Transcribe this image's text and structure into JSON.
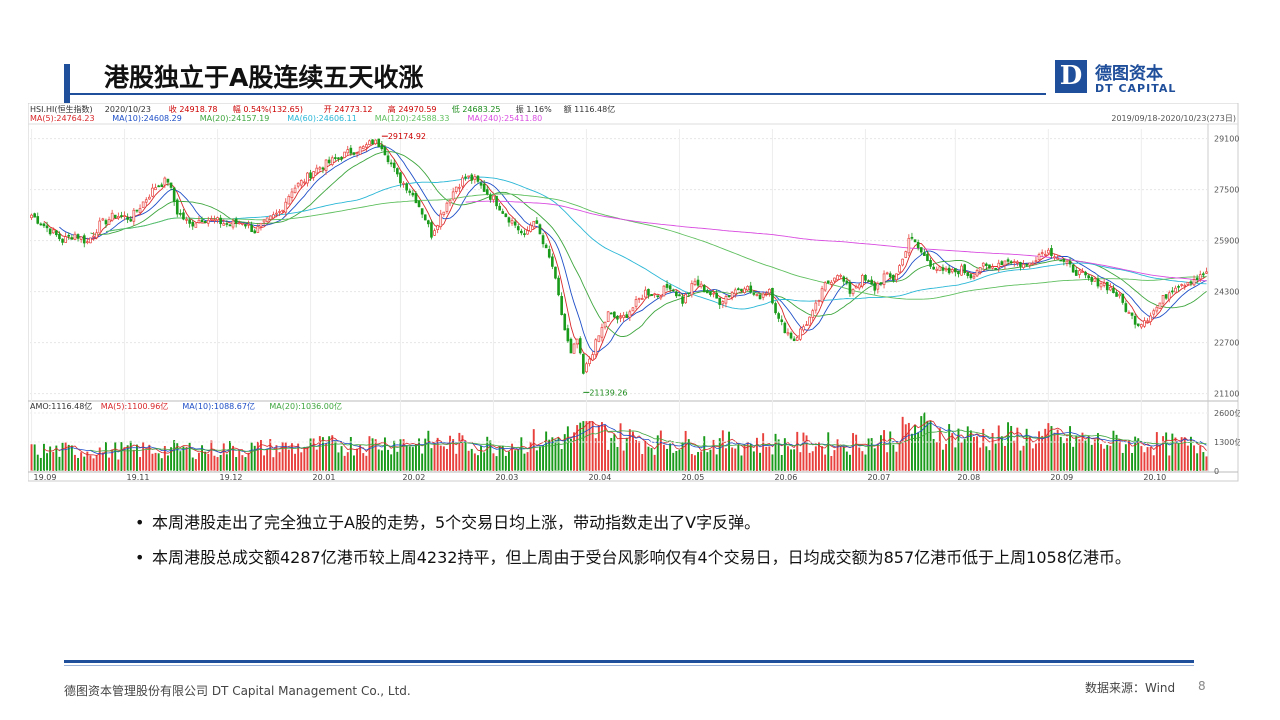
{
  "header": {
    "title": "港股独立于A股连续五天收涨",
    "logo_cn": "德图资本",
    "logo_en": "DT CAPITAL",
    "logo_mark": "D"
  },
  "chart_info": {
    "top_line": [
      "HSI.HI(恒生指数)",
      "2020/10/23",
      "收 24918.78",
      "幅 0.54%(132.65)",
      "开 24773.12",
      "高 24970.59",
      "低 24683.25",
      "振 1.16%",
      "额 1116.48亿"
    ],
    "ma_line": [
      "MA(5):24764.23",
      "MA(10):24608.29",
      "MA(20):24157.19",
      "MA(60):24606.11",
      "MA(120):24588.33",
      "MA(240):25411.80"
    ],
    "date_range": "2019/09/18-2020/10/23(273日)",
    "high_label": "29174.92",
    "low_label": "21139.26",
    "vol_line": [
      "AMO:1116.48亿",
      "MA(5):1100.96亿",
      "MA(10):1088.67亿",
      "MA(20):1036.00亿"
    ]
  },
  "colors": {
    "up": "#e8403c",
    "down": "#1a9a1a",
    "ma5": "#d8272a",
    "ma10": "#1f4fc7",
    "ma20": "#3fa63f",
    "ma60": "#2bb7d6",
    "ma120": "#5fbf5f",
    "ma240": "#d94de0",
    "brand": "#1f4e9a"
  },
  "chart_data": {
    "type": "candlestick",
    "title": "",
    "x_ticks": [
      "19.09",
      "19.11",
      "19.12",
      "20.01",
      "20.02",
      "20.03",
      "20.04",
      "20.05",
      "20.06",
      "20.07",
      "20.08",
      "20.09",
      "20.10"
    ],
    "y_ticks": [
      29100,
      27500,
      25900,
      24300,
      22700,
      21100
    ],
    "ylim": [
      20900,
      29400
    ],
    "vol_ticks": [
      "2600亿",
      "1300亿",
      "0"
    ],
    "vol_max": 2600,
    "close_path": [
      [
        0,
        26700
      ],
      [
        5,
        26300
      ],
      [
        10,
        25900
      ],
      [
        14,
        26100
      ],
      [
        18,
        25850
      ],
      [
        22,
        26400
      ],
      [
        27,
        26700
      ],
      [
        32,
        26600
      ],
      [
        36,
        27100
      ],
      [
        40,
        27600
      ],
      [
        44,
        27800
      ],
      [
        47,
        26800
      ],
      [
        51,
        26400
      ],
      [
        55,
        26600
      ],
      [
        60,
        26500
      ],
      [
        64,
        26400
      ],
      [
        68,
        26500
      ],
      [
        72,
        26200
      ],
      [
        76,
        26500
      ],
      [
        80,
        26800
      ],
      [
        84,
        27500
      ],
      [
        88,
        27800
      ],
      [
        91,
        28100
      ],
      [
        95,
        28300
      ],
      [
        99,
        28500
      ],
      [
        103,
        28700
      ],
      [
        107,
        28800
      ],
      [
        110,
        29000
      ],
      [
        113,
        28900
      ],
      [
        116,
        28300
      ],
      [
        118,
        27900
      ],
      [
        121,
        27600
      ],
      [
        124,
        27200
      ],
      [
        127,
        26600
      ],
      [
        129,
        26100
      ],
      [
        131,
        26500
      ],
      [
        134,
        27100
      ],
      [
        137,
        27600
      ],
      [
        140,
        27900
      ],
      [
        143,
        27800
      ],
      [
        146,
        27500
      ],
      [
        150,
        27100
      ],
      [
        153,
        26700
      ],
      [
        156,
        26400
      ],
      [
        159,
        26000
      ],
      [
        162,
        26600
      ],
      [
        165,
        25800
      ],
      [
        168,
        25100
      ],
      [
        170,
        24100
      ],
      [
        172,
        23100
      ],
      [
        174,
        22300
      ],
      [
        176,
        22800
      ],
      [
        178,
        21700
      ],
      [
        180,
        22200
      ],
      [
        183,
        22900
      ],
      [
        186,
        23600
      ],
      [
        190,
        23400
      ],
      [
        194,
        23800
      ],
      [
        198,
        24300
      ],
      [
        202,
        24200
      ],
      [
        206,
        24500
      ],
      [
        210,
        24000
      ],
      [
        214,
        24600
      ],
      [
        218,
        24300
      ],
      [
        222,
        24000
      ],
      [
        226,
        24300
      ],
      [
        230,
        24500
      ],
      [
        234,
        24100
      ],
      [
        238,
        24400
      ],
      [
        241,
        23400
      ],
      [
        244,
        23000
      ],
      [
        246,
        22800
      ],
      [
        249,
        23200
      ],
      [
        252,
        23600
      ],
      [
        256,
        24500
      ],
      [
        260,
        24900
      ],
      [
        264,
        24300
      ],
      [
        268,
        24700
      ],
      [
        272,
        24400
      ],
      [
        275,
        24800
      ],
      [
        278,
        24700
      ],
      [
        281,
        25300
      ],
      [
        283,
        26000
      ],
      [
        285,
        25800
      ],
      [
        288,
        25400
      ],
      [
        291,
        25100
      ],
      [
        294,
        24900
      ],
      [
        297,
        24900
      ],
      [
        300,
        25000
      ],
      [
        303,
        24800
      ],
      [
        306,
        25100
      ],
      [
        309,
        25000
      ],
      [
        312,
        25200
      ],
      [
        315,
        25300
      ],
      [
        318,
        25200
      ],
      [
        321,
        25100
      ],
      [
        324,
        25400
      ],
      [
        327,
        25600
      ],
      [
        330,
        25500
      ],
      [
        333,
        25200
      ],
      [
        336,
        25000
      ],
      [
        339,
        24800
      ],
      [
        342,
        24600
      ],
      [
        345,
        24600
      ],
      [
        348,
        24400
      ],
      [
        351,
        24100
      ],
      [
        354,
        23600
      ],
      [
        357,
        23300
      ],
      [
        360,
        23500
      ],
      [
        363,
        23800
      ],
      [
        366,
        24200
      ],
      [
        369,
        24500
      ],
      [
        372,
        24600
      ],
      [
        375,
        24700
      ],
      [
        377,
        24750
      ],
      [
        379,
        24919
      ]
    ],
    "volume_path": [
      [
        0,
        900
      ],
      [
        40,
        950
      ],
      [
        70,
        1000
      ],
      [
        100,
        1150
      ],
      [
        118,
        1300
      ],
      [
        150,
        1150
      ],
      [
        170,
        1450
      ],
      [
        180,
        1800
      ],
      [
        200,
        1300
      ],
      [
        230,
        1250
      ],
      [
        260,
        1200
      ],
      [
        278,
        1450
      ],
      [
        285,
        2000
      ],
      [
        300,
        1550
      ],
      [
        330,
        1500
      ],
      [
        345,
        1300
      ],
      [
        360,
        1250
      ],
      [
        379,
        1100
      ]
    ],
    "series": [
      {
        "name": "MA(5)",
        "color_key": "ma5",
        "window": 5
      },
      {
        "name": "MA(10)",
        "color_key": "ma10",
        "window": 10
      },
      {
        "name": "MA(20)",
        "color_key": "ma20",
        "window": 20
      },
      {
        "name": "MA(60)",
        "color_key": "ma60",
        "window": 60
      },
      {
        "name": "MA(120)",
        "color_key": "ma120",
        "window": 120
      },
      {
        "name": "MA(240)",
        "color_key": "ma240",
        "window": 240
      }
    ]
  },
  "bullets": [
    "本周港股走出了完全独立于A股的走势，5个交易日均上涨，带动指数走出了V字反弹。",
    "本周港股总成交额4287亿港币较上周4232持平，但上周由于受台风影响仅有4个交易日，日均成交额为857亿港币低于上周1058亿港币。"
  ],
  "footer": {
    "company": "德图资本管理股份有限公司  DT Capital  Management  Co., Ltd.",
    "source": "数据来源：Wind",
    "page": "8"
  }
}
